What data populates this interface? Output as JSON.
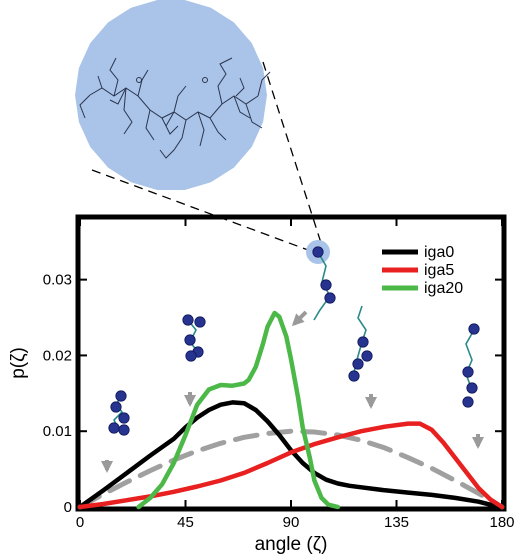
{
  "chart_data": {
    "type": "line",
    "xlabel": "angle (ζ)",
    "ylabel": "p(ζ)",
    "xlim": [
      0,
      180
    ],
    "ylim": [
      0,
      0.038
    ],
    "xticks": [
      0,
      45,
      90,
      135,
      180
    ],
    "yticks": [
      0,
      0.01,
      0.02,
      0.03
    ],
    "ytick_labels": [
      "0",
      "0.01",
      "0.02",
      "0.03"
    ],
    "legend_position": "top-right",
    "series": [
      {
        "name": "iga0",
        "color": "#000000",
        "style": "solid",
        "x": [
          0,
          10,
          20,
          30,
          40,
          45,
          50,
          55,
          60,
          65,
          70,
          75,
          80,
          85,
          90,
          95,
          100,
          105,
          110,
          115,
          120,
          130,
          140,
          150,
          160,
          170,
          175,
          180
        ],
        "y": [
          0,
          0.0022,
          0.0045,
          0.0068,
          0.009,
          0.0105,
          0.0118,
          0.0128,
          0.0135,
          0.0138,
          0.0137,
          0.0128,
          0.0113,
          0.0095,
          0.0075,
          0.0058,
          0.0045,
          0.0036,
          0.0031,
          0.0028,
          0.0026,
          0.0022,
          0.0019,
          0.0016,
          0.0012,
          0.0007,
          0.0003,
          0
        ]
      },
      {
        "name": "iga5",
        "color": "#e8201f",
        "style": "solid",
        "x": [
          0,
          10,
          20,
          30,
          40,
          50,
          60,
          70,
          80,
          90,
          100,
          110,
          120,
          130,
          140,
          145,
          150,
          155,
          160,
          165,
          170,
          175,
          180
        ],
        "y": [
          0,
          0.0004,
          0.0009,
          0.0014,
          0.002,
          0.0027,
          0.0035,
          0.0045,
          0.0058,
          0.0072,
          0.0083,
          0.0092,
          0.01,
          0.0106,
          0.011,
          0.011,
          0.0102,
          0.0085,
          0.0065,
          0.0045,
          0.0025,
          0.001,
          0
        ]
      },
      {
        "name": "iga20",
        "color": "#4cb848",
        "style": "solid",
        "x": [
          25,
          30,
          35,
          40,
          45,
          50,
          55,
          60,
          65,
          70,
          72,
          75,
          78,
          80,
          83,
          85,
          88,
          90,
          93,
          95,
          98,
          100,
          103,
          106,
          110
        ],
        "y": [
          0,
          0.0012,
          0.003,
          0.0058,
          0.0095,
          0.0135,
          0.0155,
          0.0161,
          0.016,
          0.0163,
          0.0168,
          0.0185,
          0.0215,
          0.0238,
          0.0256,
          0.0251,
          0.0225,
          0.0195,
          0.0145,
          0.0105,
          0.0065,
          0.0035,
          0.0012,
          0.0003,
          0
        ]
      },
      {
        "color": "#a0a0a0",
        "style": "dashed",
        "x": [
          0,
          10,
          20,
          30,
          40,
          50,
          60,
          70,
          80,
          90,
          100,
          110,
          120,
          130,
          140,
          150,
          160,
          170,
          180
        ],
        "y": [
          0,
          0.0017,
          0.0033,
          0.0048,
          0.0062,
          0.0074,
          0.0084,
          0.0092,
          0.0097,
          0.01,
          0.0099,
          0.0095,
          0.0088,
          0.0078,
          0.0065,
          0.0051,
          0.0035,
          0.0018,
          0
        ]
      }
    ]
  },
  "decorations": {
    "circle_fill": "#a9c4e8",
    "bead_color": "#26348f",
    "linker_color": "#2a8a8a",
    "arrow_color": "#9a9a9a"
  }
}
